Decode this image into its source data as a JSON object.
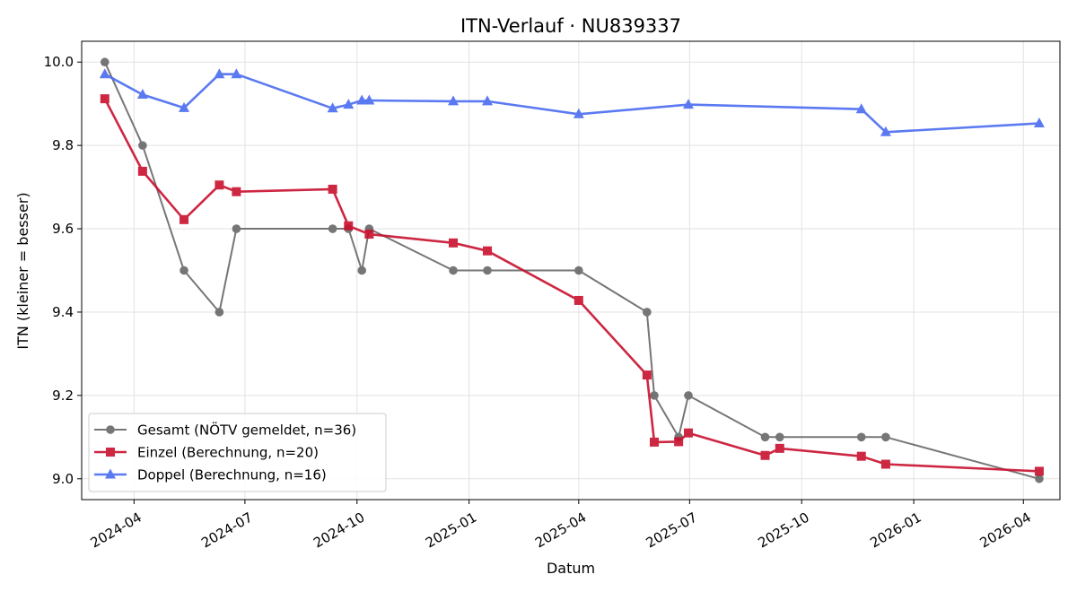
{
  "chart_data": {
    "type": "line",
    "title": "ITN-Verlauf · NU839337",
    "xlabel": "Datum",
    "ylabel": "ITN  (kleiner = besser)",
    "x_axis_type": "date",
    "xlim": [
      "2024-02-18",
      "2026-05-01"
    ],
    "ylim": [
      8.95,
      10.05
    ],
    "y_ticks": [
      9.0,
      9.2,
      9.4,
      9.6,
      9.8,
      10.0
    ],
    "y_tick_labels": [
      "9.0",
      "9.2",
      "9.4",
      "9.6",
      "9.8",
      "10.0"
    ],
    "x_ticks": [
      "2024-04-01",
      "2024-07-01",
      "2024-10-01",
      "2025-01-01",
      "2025-04-01",
      "2025-07-01",
      "2025-10-01",
      "2026-01-01",
      "2026-04-01"
    ],
    "x_tick_labels": [
      "2024-04",
      "2024-07",
      "2024-10",
      "2025-01",
      "2025-04",
      "2025-07",
      "2025-10",
      "2026-01",
      "2026-04"
    ],
    "grid": true,
    "legend_position": "lower-left",
    "series": [
      {
        "name": "Gesamt (NÖTV gemeldet, n=36)",
        "color": "#555555",
        "marker": "circle",
        "points": [
          {
            "x": "2024-03-08",
            "y": 10.0
          },
          {
            "x": "2024-04-08",
            "y": 9.8
          },
          {
            "x": "2024-05-12",
            "y": 9.5
          },
          {
            "x": "2024-06-10",
            "y": 9.4
          },
          {
            "x": "2024-06-24",
            "y": 9.6
          },
          {
            "x": "2024-09-11",
            "y": 9.6
          },
          {
            "x": "2024-09-24",
            "y": 9.6
          },
          {
            "x": "2024-10-05",
            "y": 9.5
          },
          {
            "x": "2024-10-11",
            "y": 9.6
          },
          {
            "x": "2024-12-19",
            "y": 9.5
          },
          {
            "x": "2025-01-16",
            "y": 9.5
          },
          {
            "x": "2025-04-01",
            "y": 9.5
          },
          {
            "x": "2025-05-27",
            "y": 9.4
          },
          {
            "x": "2025-06-02",
            "y": 9.2
          },
          {
            "x": "2025-06-22",
            "y": 9.1
          },
          {
            "x": "2025-06-30",
            "y": 9.2
          },
          {
            "x": "2025-09-01",
            "y": 9.1
          },
          {
            "x": "2025-09-13",
            "y": 9.1
          },
          {
            "x": "2025-11-19",
            "y": 9.1
          },
          {
            "x": "2025-12-09",
            "y": 9.1
          },
          {
            "x": "2026-04-14",
            "y": 9.0
          }
        ]
      },
      {
        "name": "Einzel (Berechnung, n=20)",
        "color": "#c8102e",
        "marker": "square",
        "points": [
          {
            "x": "2024-03-08",
            "y": 9.912
          },
          {
            "x": "2024-04-08",
            "y": 9.738
          },
          {
            "x": "2024-05-12",
            "y": 9.622
          },
          {
            "x": "2024-06-10",
            "y": 9.705
          },
          {
            "x": "2024-06-24",
            "y": 9.689
          },
          {
            "x": "2024-09-11",
            "y": 9.695
          },
          {
            "x": "2024-09-24",
            "y": 9.607
          },
          {
            "x": "2024-10-11",
            "y": 9.587
          },
          {
            "x": "2024-12-19",
            "y": 9.566
          },
          {
            "x": "2025-01-16",
            "y": 9.547
          },
          {
            "x": "2025-04-01",
            "y": 9.428
          },
          {
            "x": "2025-05-27",
            "y": 9.249
          },
          {
            "x": "2025-06-02",
            "y": 9.088
          },
          {
            "x": "2025-06-22",
            "y": 9.089
          },
          {
            "x": "2025-06-30",
            "y": 9.11
          },
          {
            "x": "2025-09-01",
            "y": 9.056
          },
          {
            "x": "2025-09-13",
            "y": 9.073
          },
          {
            "x": "2025-11-19",
            "y": 9.054
          },
          {
            "x": "2025-12-09",
            "y": 9.035
          },
          {
            "x": "2026-04-14",
            "y": 9.018
          }
        ]
      },
      {
        "name": "Doppel (Berechnung, n=16)",
        "color": "#4a6cf0",
        "marker": "triangle",
        "points": [
          {
            "x": "2024-03-08",
            "y": 9.971
          },
          {
            "x": "2024-04-08",
            "y": 9.922
          },
          {
            "x": "2024-05-12",
            "y": 9.89
          },
          {
            "x": "2024-06-10",
            "y": 9.971
          },
          {
            "x": "2024-06-24",
            "y": 9.971
          },
          {
            "x": "2024-09-11",
            "y": 9.889
          },
          {
            "x": "2024-09-24",
            "y": 9.898
          },
          {
            "x": "2024-10-05",
            "y": 9.908
          },
          {
            "x": "2024-10-11",
            "y": 9.908
          },
          {
            "x": "2024-12-19",
            "y": 9.906
          },
          {
            "x": "2025-01-16",
            "y": 9.906
          },
          {
            "x": "2025-04-01",
            "y": 9.875
          },
          {
            "x": "2025-06-30",
            "y": 9.898
          },
          {
            "x": "2025-11-19",
            "y": 9.887
          },
          {
            "x": "2025-12-09",
            "y": 9.832
          },
          {
            "x": "2026-04-14",
            "y": 9.853
          }
        ]
      }
    ]
  }
}
